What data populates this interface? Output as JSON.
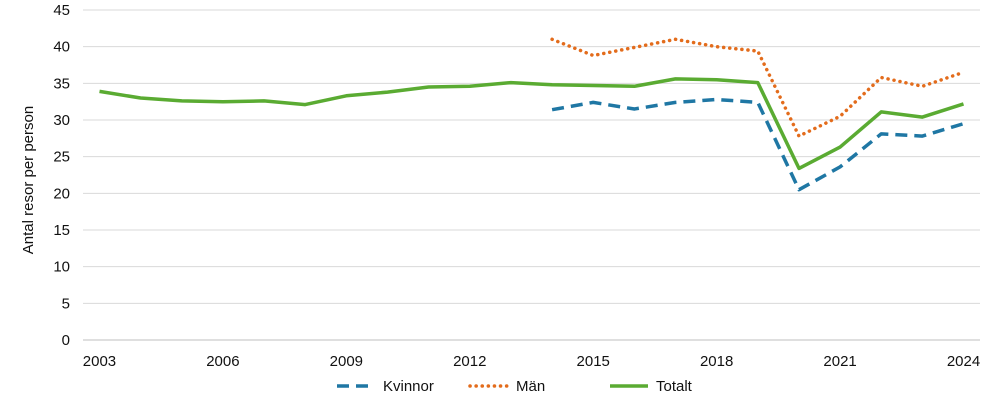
{
  "chart_data": {
    "type": "line",
    "title": "",
    "xlabel": "",
    "ylabel": "Antal resor per person",
    "xlim": [
      2003,
      2024
    ],
    "ylim": [
      0,
      45
    ],
    "y_ticks": [
      0,
      5,
      10,
      15,
      20,
      25,
      30,
      35,
      40,
      45
    ],
    "x_tick_labels": [
      2003,
      2006,
      2009,
      2012,
      2015,
      2018,
      2021,
      2024
    ],
    "grid": "horizontal",
    "legend_position": "bottom",
    "series": [
      {
        "name": "Kvinnor",
        "color": "#1f77a4",
        "style": "dashed",
        "points": [
          {
            "x": 2014,
            "y": 31.4
          },
          {
            "x": 2015,
            "y": 32.4
          },
          {
            "x": 2016,
            "y": 31.5
          },
          {
            "x": 2017,
            "y": 32.4
          },
          {
            "x": 2018,
            "y": 32.8
          },
          {
            "x": 2019,
            "y": 32.4
          },
          {
            "x": 2020,
            "y": 20.5
          },
          {
            "x": 2021,
            "y": 23.6
          },
          {
            "x": 2022,
            "y": 28.1
          },
          {
            "x": 2023,
            "y": 27.8
          },
          {
            "x": 2024,
            "y": 29.5
          }
        ]
      },
      {
        "name": "Män",
        "color": "#e36c1c",
        "style": "dotted",
        "points": [
          {
            "x": 2014,
            "y": 41.0
          },
          {
            "x": 2015,
            "y": 38.8
          },
          {
            "x": 2016,
            "y": 39.9
          },
          {
            "x": 2017,
            "y": 41.0
          },
          {
            "x": 2018,
            "y": 40.0
          },
          {
            "x": 2019,
            "y": 39.4
          },
          {
            "x": 2020,
            "y": 27.8
          },
          {
            "x": 2021,
            "y": 30.5
          },
          {
            "x": 2022,
            "y": 35.8
          },
          {
            "x": 2023,
            "y": 34.6
          },
          {
            "x": 2024,
            "y": 36.5
          }
        ]
      },
      {
        "name": "Totalt",
        "color": "#5aab32",
        "style": "solid",
        "points": [
          {
            "x": 2003,
            "y": 33.9
          },
          {
            "x": 2004,
            "y": 33.0
          },
          {
            "x": 2005,
            "y": 32.6
          },
          {
            "x": 2006,
            "y": 32.5
          },
          {
            "x": 2007,
            "y": 32.6
          },
          {
            "x": 2008,
            "y": 32.1
          },
          {
            "x": 2009,
            "y": 33.3
          },
          {
            "x": 2010,
            "y": 33.8
          },
          {
            "x": 2011,
            "y": 34.5
          },
          {
            "x": 2012,
            "y": 34.6
          },
          {
            "x": 2013,
            "y": 35.1
          },
          {
            "x": 2014,
            "y": 34.8
          },
          {
            "x": 2015,
            "y": 34.7
          },
          {
            "x": 2016,
            "y": 34.6
          },
          {
            "x": 2017,
            "y": 35.6
          },
          {
            "x": 2018,
            "y": 35.5
          },
          {
            "x": 2019,
            "y": 35.1
          },
          {
            "x": 2020,
            "y": 23.4
          },
          {
            "x": 2021,
            "y": 26.3
          },
          {
            "x": 2022,
            "y": 31.1
          },
          {
            "x": 2023,
            "y": 30.4
          },
          {
            "x": 2024,
            "y": 32.2
          }
        ]
      }
    ]
  }
}
